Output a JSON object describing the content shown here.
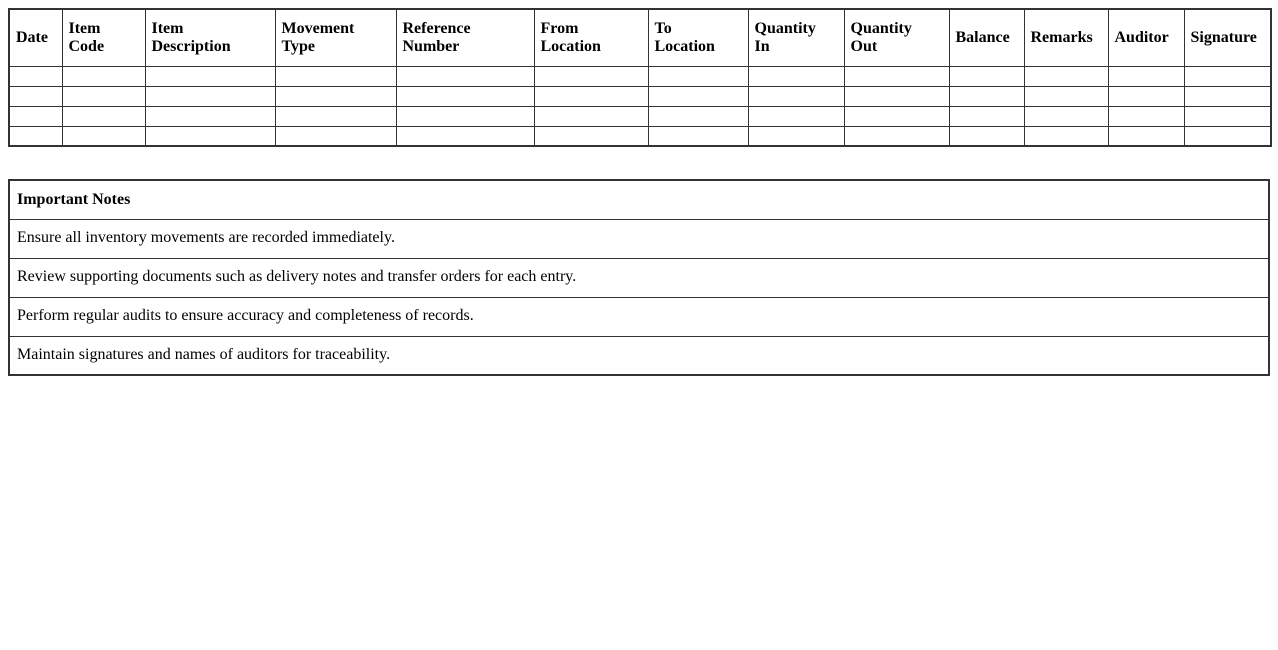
{
  "page": {
    "background_color": "#ffffff",
    "text_color": "#000000",
    "border_color": "#333333"
  },
  "inventory_table": {
    "columns": [
      "Date",
      "Item\nCode",
      "Item\nDescription",
      "Movement\nType",
      "Reference\nNumber",
      "From\nLocation",
      "To\nLocation",
      "Quantity\nIn",
      "Quantity\nOut",
      "Balance",
      "Remarks",
      "Auditor",
      "Signature"
    ],
    "empty_row_count": 4
  },
  "notes_table": {
    "title": "Important Notes",
    "items": [
      "Ensure all inventory movements are recorded immediately.",
      "Review supporting documents such as delivery notes and transfer orders for each entry.",
      "Perform regular audits to ensure accuracy and completeness of records.",
      "Maintain signatures and names of auditors for traceability."
    ]
  }
}
